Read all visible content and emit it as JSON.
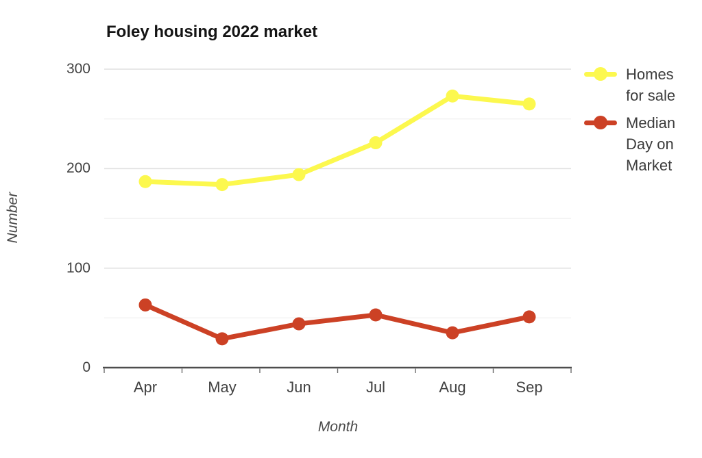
{
  "chart_data": {
    "type": "line",
    "title": "Foley housing 2022 market",
    "xlabel": "Month",
    "ylabel": "Number",
    "categories": [
      "Apr",
      "May",
      "Jun",
      "Jul",
      "Aug",
      "Sep"
    ],
    "series": [
      {
        "name": "Homes for sale",
        "values": [
          187,
          184,
          194,
          226,
          273,
          265
        ],
        "color": "#fcf84e"
      },
      {
        "name": "Median Day on Market",
        "values": [
          63,
          29,
          44,
          53,
          35,
          51
        ],
        "color": "#cc4125"
      }
    ],
    "ylim": [
      0,
      300
    ],
    "yticks_major": [
      0,
      100,
      200,
      300
    ],
    "yticks_minor": [
      50,
      150,
      250
    ],
    "grid": true,
    "legend_position": "right",
    "colors": {
      "grid_major": "#e0e0e0",
      "grid_minor": "#f1f1f1",
      "axis_line": "#4d4d4d",
      "tick_mark": "#6b6b6b",
      "label_text": "#424242"
    }
  }
}
